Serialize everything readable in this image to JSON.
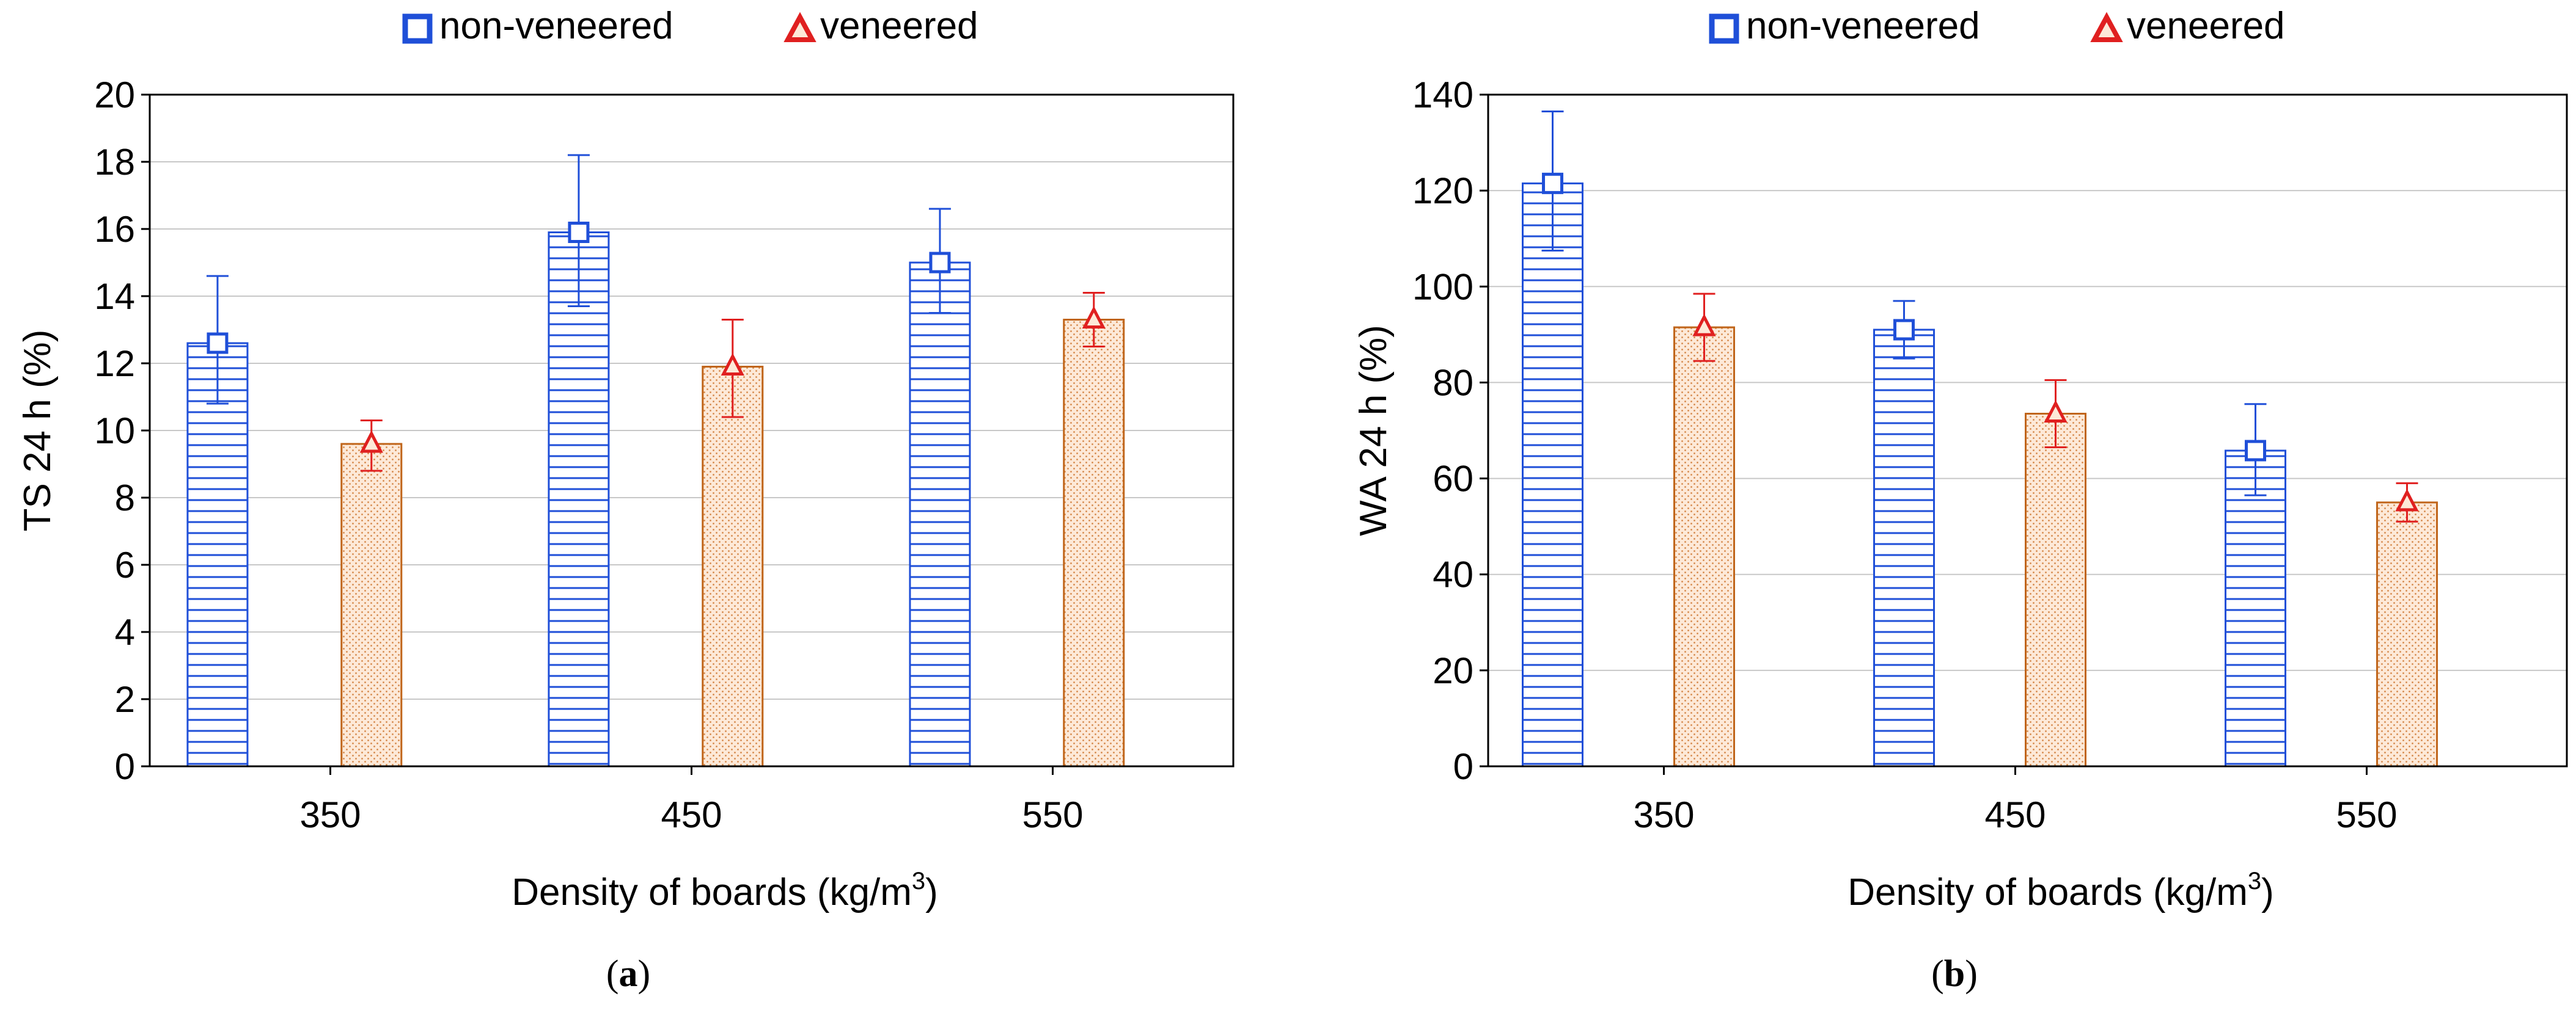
{
  "charts": [
    {
      "type": "bar",
      "panel_label": "a",
      "title": "",
      "xlabel": "Density of boards (kg/m",
      "xlabel_sup": "3",
      "xlabel_end": ")",
      "ylabel": "TS 24 h (%)",
      "categories": [
        "350",
        "450",
        "550"
      ],
      "ylim": [
        0,
        20
      ],
      "yticks": [
        0,
        2,
        4,
        6,
        8,
        10,
        12,
        14,
        16,
        18,
        20
      ],
      "grid": true,
      "legend_position": "top",
      "series": [
        {
          "name": "non-veneered",
          "values": [
            12.6,
            15.9,
            15.0
          ],
          "err_low": [
            10.8,
            13.7,
            13.5
          ],
          "err_high": [
            14.6,
            18.2,
            16.6
          ]
        },
        {
          "name": "veneered",
          "values": [
            9.6,
            11.9,
            13.3
          ],
          "err_low": [
            8.8,
            10.4,
            12.5
          ],
          "err_high": [
            10.3,
            13.3,
            14.1
          ]
        }
      ]
    },
    {
      "type": "bar",
      "panel_label": "b",
      "title": "",
      "xlabel": "Density of boards (kg/m",
      "xlabel_sup": "3",
      "xlabel_end": ")",
      "ylabel": "WA 24 h (%)",
      "categories": [
        "350",
        "450",
        "550"
      ],
      "ylim": [
        0,
        140
      ],
      "yticks": [
        0,
        20,
        40,
        60,
        80,
        100,
        120,
        140
      ],
      "grid": true,
      "legend_position": "top",
      "series": [
        {
          "name": "non-veneered",
          "values": [
            121.5,
            91.0,
            65.8
          ],
          "err_low": [
            107.5,
            85.0,
            56.5
          ],
          "err_high": [
            136.5,
            97.0,
            75.5
          ]
        },
        {
          "name": "veneered",
          "values": [
            91.5,
            73.5,
            55.0
          ],
          "err_low": [
            84.5,
            66.5,
            51.0
          ],
          "err_high": [
            98.5,
            80.5,
            59.0
          ]
        }
      ]
    }
  ],
  "colors": {
    "nonveneered_stroke": "#1f4fd8",
    "veneered_stroke": "#c0651a",
    "veneered_fill": "#fbe6d3",
    "error_veneered": "#e02020",
    "grid": "#c8c8c8"
  }
}
